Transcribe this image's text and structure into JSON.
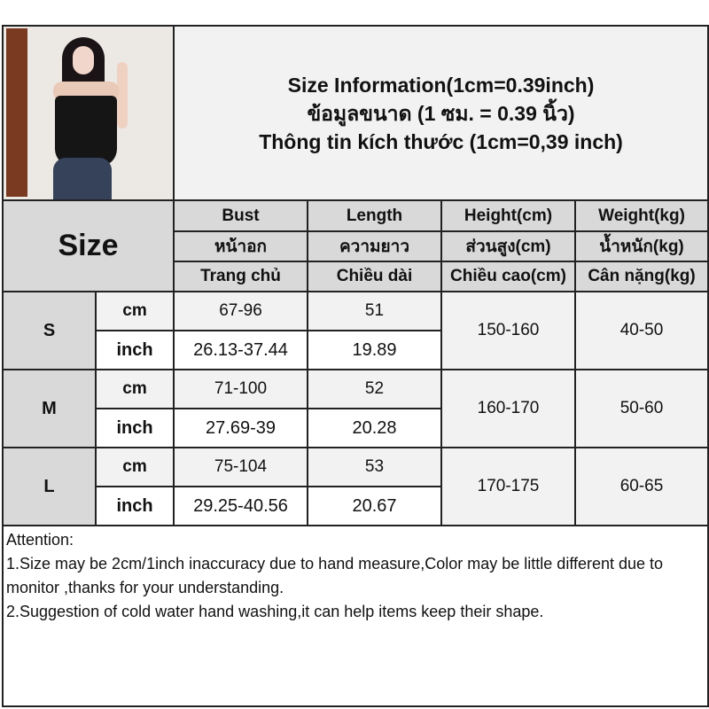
{
  "title_lines": [
    "Size Information(1cm=0.39inch)",
    "ข้อมูลขนาด (1 ซม. = 0.39 นิ้ว)",
    "Thông tin kích thước (1cm=0,39 inch)"
  ],
  "size_label": "Size",
  "columns": [
    {
      "en": "Bust",
      "th": "หน้าอก",
      "vi": "Trang chủ"
    },
    {
      "en": "Length",
      "th": "ความยาว",
      "vi": "Chiều dài"
    },
    {
      "en": "Height(cm)",
      "th": "ส่วนสูง(cm)",
      "vi": "Chiều cao(cm)"
    },
    {
      "en": "Weight(kg)",
      "th": "น้ำหนัก(kg)",
      "vi": "Cân nặng(kg)"
    }
  ],
  "unit_cm": "cm",
  "unit_inch": "inch",
  "rows": [
    {
      "size": "S",
      "bust_cm": "67-96",
      "bust_inch": "26.13-37.44",
      "length_cm": "51",
      "length_inch": "19.89",
      "height": "150-160",
      "weight": "40-50"
    },
    {
      "size": "M",
      "bust_cm": "71-100",
      "bust_inch": "27.69-39",
      "length_cm": "52",
      "length_inch": "20.28",
      "height": "160-170",
      "weight": "50-60"
    },
    {
      "size": "L",
      "bust_cm": "75-104",
      "bust_inch": "29.25-40.56",
      "length_cm": "53",
      "length_inch": "20.67",
      "height": "170-175",
      "weight": "60-65"
    }
  ],
  "attention": {
    "heading": "Attention:",
    "line1": "1.Size may be 2cm/1inch inaccuracy due to hand measure,Color may be little different due to monitor ,thanks for your understanding.",
    "line2": "2.Suggestion of cold water hand washing,it can help items keep their shape."
  },
  "colors": {
    "header_gray": "#d9d9d9",
    "light_gray": "#f2f2f2",
    "border": "#222222"
  }
}
